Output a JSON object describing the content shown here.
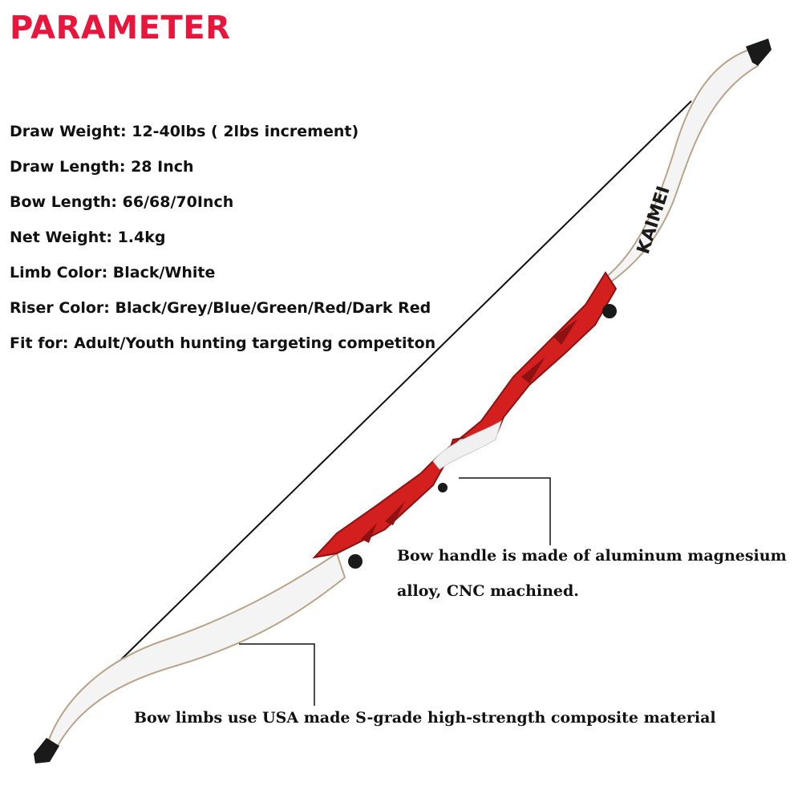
{
  "title": "PARAMETER",
  "specs": [
    "Draw Weight: 12-40lbs ( 2lbs increment)",
    "Draw Length: 28 Inch",
    "Bow Length: 66/68/70Inch",
    "Net Weight: 1.4kg",
    "Limb Color: Black/White",
    "Riser Color: Black/Grey/Blue/Green/Red/Dark Red",
    "Fit for: Adult/Youth hunting targeting competiton"
  ],
  "callouts": {
    "handle_line1": "Bow handle is made of aluminum magnesium",
    "handle_line2": "alloy, CNC machined.",
    "limbs": "Bow limbs use USA made S-grade high-strength composite material"
  },
  "brand_mark": "KAIMEI",
  "colors": {
    "title": "#e8163c",
    "riser": "#d41f1f",
    "limb": "#f4f4f4",
    "tip": "#1a1a1a"
  }
}
